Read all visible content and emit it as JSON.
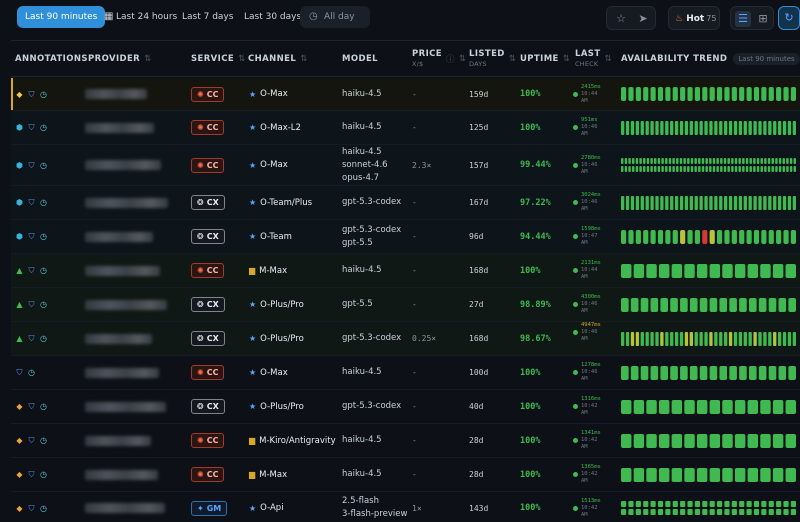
{
  "toolbar": {
    "ranges": [
      {
        "label": "Last 90 minutes",
        "active": true
      },
      {
        "label": "Last 24 hours",
        "active": false
      },
      {
        "label": "Last 7 days",
        "active": false
      },
      {
        "label": "Last 30 days",
        "active": false
      },
      {
        "label": "All day",
        "active": false
      }
    ],
    "hot_label": "Hot",
    "hot_count": "75"
  },
  "table": {
    "headers": {
      "annotations": "ANNOTATIONS",
      "provider": "PROVIDER",
      "service": "SERVICE",
      "channel": "CHANNEL",
      "model": "MODEL",
      "price": "PRICE",
      "price_sub": "X/$",
      "listed": "LISTED",
      "listed_sub": "DAYS",
      "uptime": "UPTIME",
      "last_check": "LAST",
      "last_check_sub": "CHECK",
      "trend": "AVAILABILITY TREND",
      "trend_pill": "Last 90 minutes"
    },
    "colors": {
      "up": "#3fb950",
      "warn": "#b8c33a",
      "down": "#d13a36",
      "accent": "#2f8fd8"
    },
    "rows": [
      {
        "tint": "gold",
        "annotations": [
          "diamond",
          "shield",
          "clock"
        ],
        "service": "CC",
        "channel_icon": "star",
        "channel": "O-Max",
        "model": [
          "haiku-4.5"
        ],
        "price": "-",
        "listed": "159d",
        "uptime": "100%",
        "ms": "2415ms",
        "time": "10:44",
        "ampm": "AM",
        "ms_warn": false,
        "bars": 24,
        "pattern": "solid"
      },
      {
        "tint": "teal",
        "annotations": [
          "hex",
          "shield",
          "clock"
        ],
        "service": "CC",
        "channel_icon": "star",
        "channel": "O-Max-L2",
        "model": [
          "haiku-4.5"
        ],
        "price": "-",
        "listed": "125d",
        "uptime": "100%",
        "ms": "951ms",
        "time": "10:46",
        "ampm": "AM",
        "ms_warn": false,
        "bars": 36,
        "pattern": "solid"
      },
      {
        "tint": "teal",
        "annotations": [
          "hex",
          "shield",
          "clock"
        ],
        "service": "CC",
        "channel_icon": "star",
        "channel": "O-Max",
        "model": [
          "haiku-4.5",
          "sonnet-4.6",
          "opus-4.7"
        ],
        "price": "2.3×",
        "listed": "157d",
        "uptime": "99.44%",
        "ms": "2780ms",
        "time": "10:46",
        "ampm": "AM",
        "ms_warn": false,
        "bars": 48,
        "pattern": "dotted"
      },
      {
        "tint": "teal",
        "annotations": [
          "hex",
          "shield",
          "clock"
        ],
        "service": "CX",
        "channel_icon": "star",
        "channel": "O-Team/Plus",
        "model": [
          "gpt-5.3-codex"
        ],
        "price": "-",
        "listed": "167d",
        "uptime": "97.22%",
        "ms": "3024ms",
        "time": "10:46",
        "ampm": "AM",
        "ms_warn": false,
        "bars": 36,
        "pattern": "solid"
      },
      {
        "tint": "teal",
        "annotations": [
          "hex",
          "shield",
          "clock"
        ],
        "service": "CX",
        "channel_icon": "star",
        "channel": "O-Team",
        "model": [
          "gpt-5.3-codex",
          "gpt-5.5"
        ],
        "price": "-",
        "listed": "96d",
        "uptime": "94.44%",
        "ms": "1598ms",
        "time": "10:47",
        "ampm": "AM",
        "ms_warn": false,
        "bars": 24,
        "pattern": "mixed"
      },
      {
        "tint": "green",
        "annotations": [
          "tri",
          "shield",
          "clock"
        ],
        "service": "CC",
        "channel_icon": "box",
        "channel": "M-Max",
        "model": [
          "haiku-4.5"
        ],
        "price": "-",
        "listed": "168d",
        "uptime": "100%",
        "ms": "2131ms",
        "time": "10:44",
        "ampm": "AM",
        "ms_warn": false,
        "bars": 14,
        "pattern": "solid"
      },
      {
        "tint": "green",
        "annotations": [
          "tri",
          "shield",
          "clock"
        ],
        "service": "CX",
        "channel_icon": "star",
        "channel": "O-Plus/Pro",
        "model": [
          "gpt-5.5"
        ],
        "price": "-",
        "listed": "27d",
        "uptime": "98.89%",
        "ms": "4300ms",
        "time": "10:46",
        "ampm": "AM",
        "ms_warn": false,
        "bars": 18,
        "pattern": "solid"
      },
      {
        "tint": "green",
        "annotations": [
          "tri",
          "shield",
          "clock"
        ],
        "service": "CX",
        "channel_icon": "star",
        "channel": "O-Plus/Pro",
        "model": [
          "gpt-5.3-codex"
        ],
        "price": "0.25×",
        "listed": "168d",
        "uptime": "98.67%",
        "ms": "4947ms",
        "time": "10:46",
        "ampm": "AM",
        "ms_warn": true,
        "bars": 36,
        "pattern": "warnmix"
      },
      {
        "tint": "none",
        "annotations": [
          "shield",
          "clock"
        ],
        "service": "CC",
        "channel_icon": "star",
        "channel": "O-Max",
        "model": [
          "haiku-4.5"
        ],
        "price": "-",
        "listed": "100d",
        "uptime": "100%",
        "ms": "1278ms",
        "time": "10:46",
        "ampm": "AM",
        "ms_warn": false,
        "bars": 18,
        "pattern": "solid"
      },
      {
        "tint": "none",
        "annotations": [
          "diamond2",
          "shield",
          "clock"
        ],
        "service": "CX",
        "channel_icon": "star",
        "channel": "O-Plus/Pro",
        "model": [
          "gpt-5.3-codex"
        ],
        "price": "-",
        "listed": "40d",
        "uptime": "100%",
        "ms": "1316ms",
        "time": "10:42",
        "ampm": "AM",
        "ms_warn": false,
        "bars": 14,
        "pattern": "solid"
      },
      {
        "tint": "none",
        "annotations": [
          "diamond2",
          "shield",
          "clock"
        ],
        "service": "CC",
        "channel_icon": "box",
        "channel": "M-Kiro/Antigravity",
        "model": [
          "haiku-4.5"
        ],
        "price": "-",
        "listed": "28d",
        "uptime": "100%",
        "ms": "1341ms",
        "time": "10:42",
        "ampm": "AM",
        "ms_warn": false,
        "bars": 14,
        "pattern": "solid"
      },
      {
        "tint": "none",
        "annotations": [
          "diamond2",
          "shield",
          "clock"
        ],
        "service": "CC",
        "channel_icon": "box",
        "channel": "M-Max",
        "model": [
          "haiku-4.5"
        ],
        "price": "-",
        "listed": "28d",
        "uptime": "100%",
        "ms": "1365ms",
        "time": "10:42",
        "ampm": "AM",
        "ms_warn": false,
        "bars": 14,
        "pattern": "solid"
      },
      {
        "tint": "none",
        "annotations": [
          "diamond2",
          "shield",
          "clock"
        ],
        "service": "GM",
        "channel_icon": "star",
        "channel": "O-Api",
        "model": [
          "2.5-flash",
          "3-flash-preview"
        ],
        "price": "1×",
        "listed": "143d",
        "uptime": "100%",
        "ms": "1513ms",
        "time": "10:42",
        "ampm": "AM",
        "ms_warn": false,
        "bars": 24,
        "pattern": "dotted"
      }
    ]
  }
}
